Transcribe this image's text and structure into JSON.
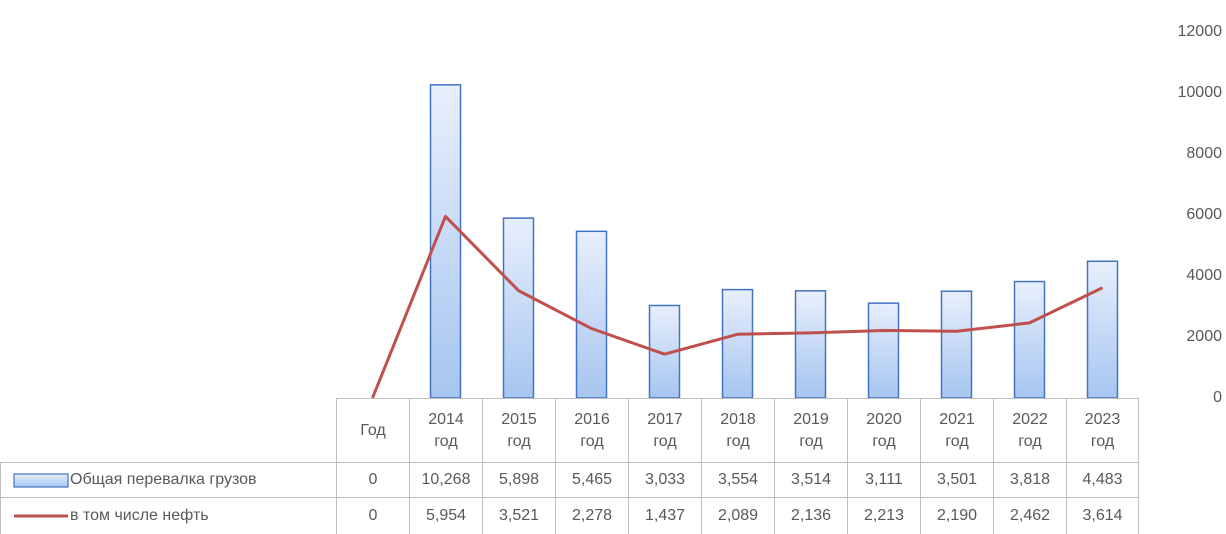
{
  "chart_data": {
    "type": "bar",
    "categories": [
      "Год",
      "2014 год",
      "2015 год",
      "2016 год",
      "2017 год",
      "2018 год",
      "2019 год",
      "2020 год",
      "2021 год",
      "2022 год",
      "2023 год"
    ],
    "series": [
      {
        "name": "Общая перевалка грузов",
        "type": "bar",
        "color": "#4472c4",
        "values": [
          0,
          10268,
          5898,
          5465,
          3033,
          3554,
          3514,
          3111,
          3501,
          3818,
          4483
        ],
        "value_labels": [
          "0",
          "10,268",
          "5,898",
          "5,465",
          "3,033",
          "3,554",
          "3,514",
          "3,111",
          "3,501",
          "3,818",
          "4,483"
        ]
      },
      {
        "name": "в том числе нефть",
        "type": "line",
        "color": "#c0504d",
        "values": [
          0,
          5954,
          3521,
          2278,
          1437,
          2089,
          2136,
          2213,
          2190,
          2462,
          3614
        ],
        "value_labels": [
          "0",
          "5,954",
          "3,521",
          "2,278",
          "1,437",
          "2,089",
          "2,136",
          "2,213",
          "2,190",
          "2,462",
          "3,614"
        ]
      }
    ],
    "ylim": [
      0,
      12000
    ],
    "yticks": [
      0,
      2000,
      4000,
      6000,
      8000,
      10000,
      12000
    ],
    "axis_side": "right"
  }
}
